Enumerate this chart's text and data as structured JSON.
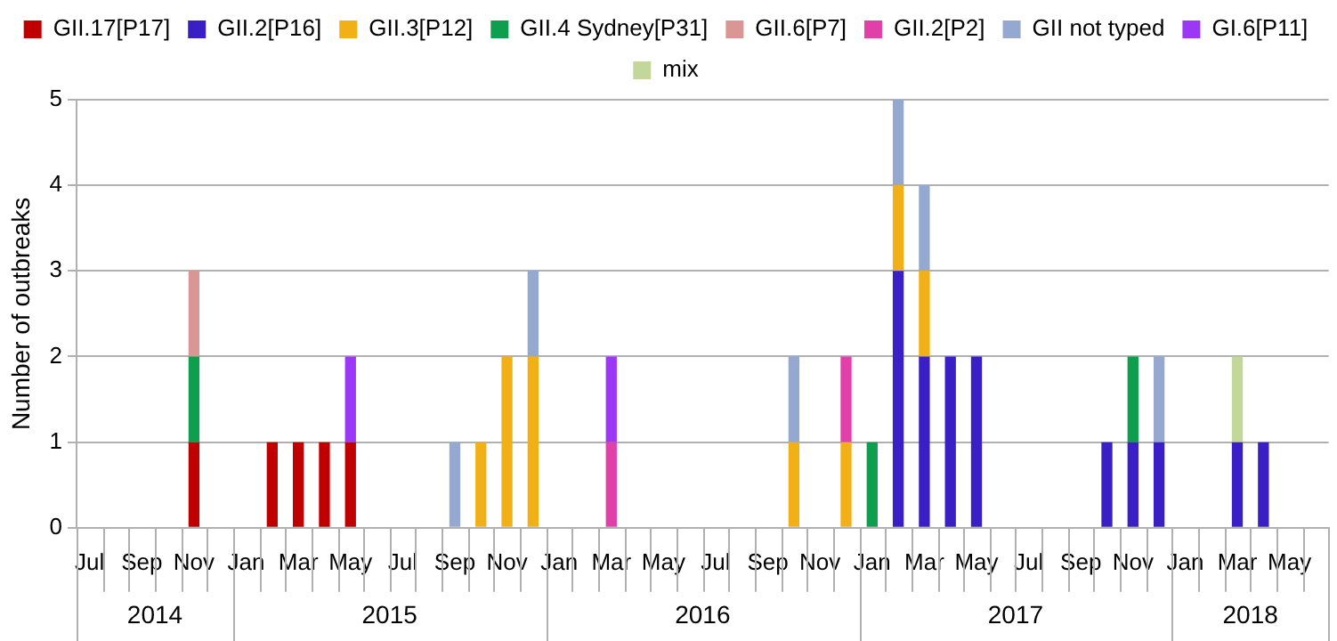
{
  "chart_data": {
    "type": "bar",
    "stacked": true,
    "ylabel": "Number of outbreaks",
    "ylim": [
      0,
      5
    ],
    "yticks": [
      0,
      1,
      2,
      3,
      4,
      5
    ],
    "grid": "y",
    "legend": "top",
    "categories": [
      "Jul",
      null,
      "Sep",
      null,
      "Nov",
      null,
      "Jan",
      null,
      "Mar",
      null,
      "May",
      null,
      "Jul",
      null,
      "Sep",
      null,
      "Nov",
      null,
      "Jan",
      null,
      "Mar",
      null,
      "May",
      null,
      "Jul",
      null,
      "Sep",
      null,
      "Nov",
      null,
      "Jan",
      null,
      "Mar",
      null,
      "May",
      null,
      "Jul",
      null,
      "Sep",
      null,
      "Nov",
      null,
      "Jan",
      null,
      "Mar",
      null,
      "May",
      null
    ],
    "annotations": [
      "2014",
      "2015",
      "2016",
      "2017",
      "2018"
    ],
    "series": [
      {
        "name": "GII.17[P17]",
        "color": "#c00000",
        "values": [
          null,
          null,
          null,
          null,
          1,
          null,
          null,
          1,
          1,
          1,
          1,
          null,
          null,
          null,
          null,
          null,
          null,
          null,
          null,
          null,
          null,
          null,
          null,
          null,
          null,
          null,
          null,
          null,
          null,
          null,
          null,
          null,
          null,
          null,
          null,
          null,
          null,
          null,
          null,
          null,
          null,
          null,
          null,
          null,
          null,
          null,
          null,
          null
        ]
      },
      {
        "name": "GII.2[P16]",
        "color": "#3a1fc4",
        "values": [
          null,
          null,
          null,
          null,
          null,
          null,
          null,
          null,
          null,
          null,
          null,
          null,
          null,
          null,
          null,
          null,
          null,
          null,
          null,
          null,
          null,
          null,
          null,
          null,
          null,
          null,
          null,
          null,
          null,
          null,
          null,
          3,
          2,
          2,
          2,
          null,
          null,
          null,
          null,
          1,
          1,
          1,
          null,
          null,
          1,
          1,
          null,
          null
        ]
      },
      {
        "name": "GII.3[P12]",
        "color": "#f0b016",
        "values": [
          null,
          null,
          null,
          null,
          null,
          null,
          null,
          null,
          null,
          null,
          null,
          null,
          null,
          null,
          null,
          1,
          2,
          2,
          null,
          null,
          null,
          null,
          null,
          null,
          null,
          null,
          null,
          1,
          null,
          1,
          null,
          1,
          1,
          null,
          null,
          null,
          null,
          null,
          null,
          null,
          null,
          null,
          null,
          null,
          null,
          null,
          null,
          null
        ]
      },
      {
        "name": "GII.4 Sydney[P31]",
        "color": "#0d9e4e",
        "values": [
          null,
          null,
          null,
          null,
          1,
          null,
          null,
          null,
          null,
          null,
          null,
          null,
          null,
          null,
          null,
          null,
          null,
          null,
          null,
          null,
          null,
          null,
          null,
          null,
          null,
          null,
          null,
          null,
          null,
          null,
          1,
          null,
          null,
          null,
          null,
          null,
          null,
          null,
          null,
          null,
          1,
          null,
          null,
          null,
          null,
          null,
          null,
          null
        ]
      },
      {
        "name": "GII.6[P7]",
        "color": "#d99694",
        "values": [
          null,
          null,
          null,
          null,
          1,
          null,
          null,
          null,
          null,
          null,
          null,
          null,
          null,
          null,
          null,
          null,
          null,
          null,
          null,
          null,
          null,
          null,
          null,
          null,
          null,
          null,
          null,
          null,
          null,
          null,
          null,
          null,
          null,
          null,
          null,
          null,
          null,
          null,
          null,
          null,
          null,
          null,
          null,
          null,
          null,
          null,
          null,
          null
        ]
      },
      {
        "name": "GII.2[P2]",
        "color": "#e040a8",
        "values": [
          null,
          null,
          null,
          null,
          null,
          null,
          null,
          null,
          null,
          null,
          null,
          null,
          null,
          null,
          null,
          null,
          null,
          null,
          null,
          null,
          1,
          null,
          null,
          null,
          null,
          null,
          null,
          null,
          null,
          1,
          null,
          null,
          null,
          null,
          null,
          null,
          null,
          null,
          null,
          null,
          null,
          null,
          null,
          null,
          null,
          null,
          null,
          null
        ]
      },
      {
        "name": "GII not typed",
        "color": "#95a9d0",
        "values": [
          null,
          null,
          null,
          null,
          null,
          null,
          null,
          null,
          null,
          null,
          null,
          null,
          null,
          null,
          1,
          null,
          null,
          1,
          null,
          null,
          null,
          null,
          null,
          null,
          null,
          null,
          null,
          1,
          null,
          null,
          null,
          1,
          1,
          null,
          null,
          null,
          null,
          null,
          null,
          null,
          null,
          1,
          null,
          null,
          null,
          null,
          null,
          null
        ]
      },
      {
        "name": "GI.6[P11]",
        "color": "#9b38f5",
        "values": [
          null,
          null,
          null,
          null,
          null,
          null,
          null,
          null,
          null,
          null,
          1,
          null,
          null,
          null,
          null,
          null,
          null,
          null,
          null,
          null,
          1,
          null,
          null,
          null,
          null,
          null,
          null,
          null,
          null,
          null,
          null,
          null,
          null,
          null,
          null,
          null,
          null,
          null,
          null,
          null,
          null,
          null,
          null,
          null,
          null,
          null,
          null,
          null
        ]
      },
      {
        "name": "mix",
        "color": "#c4d79b",
        "values": [
          null,
          null,
          null,
          null,
          null,
          null,
          null,
          null,
          null,
          null,
          null,
          null,
          null,
          null,
          null,
          null,
          null,
          null,
          null,
          null,
          null,
          null,
          null,
          null,
          null,
          null,
          null,
          null,
          null,
          null,
          null,
          null,
          null,
          null,
          null,
          null,
          null,
          null,
          null,
          null,
          null,
          null,
          null,
          null,
          1,
          null,
          null,
          null
        ]
      }
    ]
  }
}
